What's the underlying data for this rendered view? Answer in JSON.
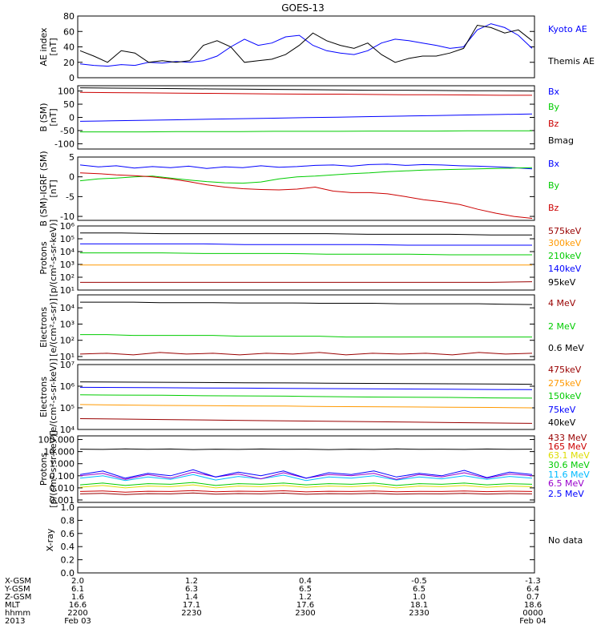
{
  "title": "GOES-13",
  "colors": {
    "black": "#000000",
    "blue": "#0000ff",
    "green": "#00cc00",
    "red": "#cc0000",
    "orange": "#ff9900",
    "yellow": "#dddd00",
    "cyan": "#00bbff",
    "purple": "#9900cc",
    "darkred": "#990000"
  },
  "chart_data": [
    {
      "id": "ae",
      "type": "line",
      "ylabel": "AE index\n[nT]",
      "ylim": [
        0,
        80
      ],
      "yticks": [
        "0",
        "20",
        "40",
        "60",
        "80"
      ],
      "series": [
        {
          "name": "Kyoto AE",
          "color": "blue",
          "values": [
            18,
            16,
            15,
            17,
            16,
            20,
            19,
            21,
            20,
            22,
            28,
            40,
            50,
            42,
            45,
            53,
            55,
            42,
            35,
            32,
            30,
            35,
            45,
            50,
            48,
            45,
            42,
            38,
            40,
            62,
            70,
            65,
            55,
            38
          ]
        },
        {
          "name": "Themis AE",
          "color": "black",
          "values": [
            35,
            28,
            20,
            35,
            32,
            20,
            22,
            20,
            22,
            42,
            48,
            40,
            20,
            22,
            24,
            30,
            42,
            58,
            48,
            42,
            38,
            45,
            30,
            20,
            25,
            28,
            28,
            32,
            38,
            68,
            65,
            58,
            62,
            48
          ]
        }
      ]
    },
    {
      "id": "bsm",
      "type": "line",
      "ylabel": "B (SM)\n[nT]",
      "ylim": [
        -120,
        120
      ],
      "yticks": [
        "-100",
        "-50",
        "0",
        "50",
        "100"
      ],
      "series": [
        {
          "name": "Bx",
          "color": "blue",
          "values": [
            -15,
            -13,
            -11,
            -9,
            -7,
            -5,
            -3,
            -1,
            1,
            3,
            5,
            7,
            9,
            11,
            13
          ]
        },
        {
          "name": "By",
          "color": "green",
          "values": [
            -55,
            -55,
            -55,
            -54,
            -54,
            -54,
            -53,
            -53,
            -53,
            -52,
            -52,
            -52,
            -51,
            -51,
            -51
          ]
        },
        {
          "name": "Bz",
          "color": "red",
          "values": [
            95,
            94,
            93,
            92,
            91,
            90,
            89,
            88,
            88,
            87,
            86,
            86,
            85,
            84,
            84
          ]
        },
        {
          "name": "Bmag",
          "color": "black",
          "values": [
            112,
            111,
            110,
            109,
            108,
            107,
            106,
            105,
            104,
            103,
            103,
            102,
            101,
            101,
            100
          ]
        }
      ]
    },
    {
      "id": "digrf",
      "type": "line",
      "ylabel": "B (SM)-IGRF (SM)\n[nT]",
      "ylim": [
        -11,
        5
      ],
      "yticks": [
        "-10",
        "-5",
        "0",
        "5"
      ],
      "series": [
        {
          "name": "Bx",
          "color": "blue",
          "values": [
            3,
            2.5,
            2.8,
            2.2,
            2.6,
            2.3,
            2.7,
            2.1,
            2.5,
            2.3,
            2.8,
            2.4,
            2.6,
            2.9,
            3.0,
            2.7,
            3.1,
            3.2,
            2.9,
            3.1,
            3.0,
            2.8,
            2.7,
            2.5,
            2.3,
            2.0
          ]
        },
        {
          "name": "By",
          "color": "green",
          "values": [
            -1,
            -0.5,
            -0.3,
            0,
            0.2,
            -0.3,
            -0.8,
            -1.2,
            -1.5,
            -1.6,
            -1.3,
            -0.5,
            0,
            0.2,
            0.5,
            0.8,
            1,
            1.3,
            1.5,
            1.7,
            1.8,
            1.9,
            2,
            2.1,
            2.2,
            2.3
          ]
        },
        {
          "name": "Bz",
          "color": "red",
          "values": [
            1,
            0.8,
            0.5,
            0.3,
            0,
            -0.5,
            -1.2,
            -2,
            -2.6,
            -3,
            -3.2,
            -3.3,
            -3.1,
            -2.6,
            -3.6,
            -4,
            -4,
            -4.3,
            -5,
            -5.8,
            -6.3,
            -7,
            -8.2,
            -9.2,
            -10,
            -10.5
          ]
        }
      ]
    },
    {
      "id": "protons",
      "type": "line",
      "log": true,
      "ylabel": "Protons\n[p/(cm²-s-sr-keV)]",
      "ylim_exp": [
        1,
        6
      ],
      "yticks": [
        "10¹",
        "10²",
        "10³",
        "10⁴",
        "10⁵",
        "10⁶"
      ],
      "series": [
        {
          "name": "575keV",
          "color": "darkred",
          "values": [
            1.6,
            1.6,
            1.6,
            1.6,
            1.6,
            1.6,
            1.6,
            1.6,
            1.6,
            1.6,
            1.6,
            1.65
          ]
        },
        {
          "name": "300keV",
          "color": "orange",
          "values": [
            2.95,
            2.95,
            2.95,
            2.95,
            2.95,
            2.95,
            2.95,
            2.95,
            2.95,
            2.95,
            2.95,
            2.95
          ]
        },
        {
          "name": "210keV",
          "color": "green",
          "values": [
            3.9,
            3.9,
            3.9,
            3.85,
            3.85,
            3.85,
            3.8,
            3.8,
            3.8,
            3.75,
            3.75,
            3.75
          ]
        },
        {
          "name": "140keV",
          "color": "blue",
          "values": [
            4.6,
            4.6,
            4.6,
            4.6,
            4.55,
            4.55,
            4.55,
            4.55,
            4.5,
            4.5,
            4.5,
            4.5
          ]
        },
        {
          "name": "95keV",
          "color": "black",
          "values": [
            5.45,
            5.45,
            5.4,
            5.4,
            5.4,
            5.4,
            5.4,
            5.35,
            5.35,
            5.35,
            5.3,
            5.3
          ]
        }
      ]
    },
    {
      "id": "electrons1",
      "type": "line",
      "log": true,
      "ylabel": "Electrons\n[e/(cm²-s-sr)]",
      "ylim_exp": [
        0.8,
        4.8
      ],
      "yticks": [
        "10¹",
        "10²",
        "10³",
        "10⁴"
      ],
      "series": [
        {
          "name": "4 MeV",
          "color": "darkred",
          "values": [
            1.15,
            1.2,
            1.1,
            1.25,
            1.15,
            1.2,
            1.1,
            1.2,
            1.15,
            1.25,
            1.1,
            1.2,
            1.15,
            1.2,
            1.1,
            1.25,
            1.15,
            1.2
          ]
        },
        {
          "name": "2 MeV",
          "color": "green",
          "values": [
            2.35,
            2.35,
            2.3,
            2.3,
            2.3,
            2.3,
            2.25,
            2.25,
            2.25,
            2.25,
            2.2,
            2.2,
            2.2,
            2.2,
            2.2,
            2.2,
            2.2,
            2.2
          ]
        },
        {
          "name": "0.6 MeV",
          "color": "black",
          "values": [
            4.35,
            4.35,
            4.35,
            4.32,
            4.32,
            4.32,
            4.3,
            4.3,
            4.3,
            4.28,
            4.28,
            4.28,
            4.25,
            4.25,
            4.25,
            4.25,
            4.22,
            4.2
          ]
        }
      ]
    },
    {
      "id": "electrons2",
      "type": "line",
      "log": true,
      "ylabel": "Electrons\n[e/(cm²-s-sr-keV)]",
      "ylim_exp": [
        4,
        7
      ],
      "yticks": [
        "10⁴",
        "10⁵",
        "10⁶",
        "10⁷"
      ],
      "series": [
        {
          "name": "475keV",
          "color": "darkred",
          "values": [
            4.5,
            4.48,
            4.46,
            4.44,
            4.42,
            4.4,
            4.38,
            4.36,
            4.34,
            4.32,
            4.3,
            4.28
          ]
        },
        {
          "name": "275keV",
          "color": "orange",
          "values": [
            5.15,
            5.13,
            5.11,
            5.1,
            5.09,
            5.08,
            5.06,
            5.05,
            5.04,
            5.03,
            5.02,
            5.0
          ]
        },
        {
          "name": "150keV",
          "color": "green",
          "values": [
            5.6,
            5.59,
            5.58,
            5.56,
            5.55,
            5.54,
            5.52,
            5.5,
            5.49,
            5.48,
            5.46,
            5.45
          ]
        },
        {
          "name": "75keV",
          "color": "blue",
          "values": [
            5.95,
            5.94,
            5.93,
            5.92,
            5.91,
            5.9,
            5.89,
            5.88,
            5.87,
            5.86,
            5.85,
            5.84
          ]
        },
        {
          "name": "40keV",
          "color": "black",
          "values": [
            6.2,
            6.19,
            6.18,
            6.17,
            6.16,
            6.15,
            6.14,
            6.13,
            6.12,
            6.11,
            6.1,
            6.09
          ]
        }
      ]
    },
    {
      "id": "protons2",
      "type": "line",
      "log": true,
      "ylabel": "Protons\n[p/(cm²-s-sr-keV)]",
      "ylim_exp": [
        -3.2,
        2.3
      ],
      "yticks": [
        "0.001",
        "0.010",
        "0.100",
        "1.000",
        "10.000",
        "100.000"
      ],
      "series": [
        {
          "name": "433 MeV",
          "color": "darkred",
          "values": [
            -2.5,
            -2.45,
            -2.55,
            -2.48,
            -2.5,
            -2.42,
            -2.52,
            -2.47,
            -2.5,
            -2.44,
            -2.53,
            -2.48,
            -2.5,
            -2.46,
            -2.52,
            -2.49,
            -2.5,
            -2.45,
            -2.51,
            -2.47,
            -2.5
          ]
        },
        {
          "name": "165 MeV",
          "color": "red",
          "values": [
            -2.3,
            -2.25,
            -2.35,
            -2.28,
            -2.3,
            -2.22,
            -2.32,
            -2.27,
            -2.3,
            -2.24,
            -2.33,
            -2.28,
            -2.3,
            -2.26,
            -2.32,
            -2.29,
            -2.3,
            -2.25,
            -2.31,
            -2.27,
            -2.3
          ]
        },
        {
          "name": "63.1 MeV",
          "color": "yellow",
          "values": [
            -1.95,
            -1.8,
            -2.0,
            -1.85,
            -1.9,
            -1.75,
            -2.0,
            -1.85,
            -1.9,
            -1.8,
            -1.95,
            -1.85,
            -1.9,
            -1.8,
            -2.0,
            -1.85,
            -1.9,
            -1.8,
            -1.95,
            -1.85,
            -1.9
          ]
        },
        {
          "name": "30.6 MeV",
          "color": "green",
          "values": [
            -1.75,
            -1.6,
            -1.8,
            -1.65,
            -1.7,
            -1.55,
            -1.8,
            -1.65,
            -1.7,
            -1.6,
            -1.75,
            -1.65,
            -1.7,
            -1.6,
            -1.8,
            -1.65,
            -1.7,
            -1.6,
            -1.75,
            -1.65,
            -1.7
          ]
        },
        {
          "name": "11.6 MeV",
          "color": "cyan",
          "values": [
            -1.2,
            -1.0,
            -1.4,
            -1.1,
            -1.3,
            -0.9,
            -1.35,
            -1.05,
            -1.25,
            -0.95,
            -1.4,
            -1.1,
            -1.2,
            -1.0,
            -1.35,
            -1.1,
            -1.25,
            -1.0,
            -1.3,
            -1.05,
            -1.2
          ]
        },
        {
          "name": "6.5 MeV",
          "color": "purple",
          "values": [
            -1.0,
            -0.8,
            -1.3,
            -0.9,
            -1.2,
            -0.7,
            -1.1,
            -0.85,
            -1.25,
            -0.75,
            -1.2,
            -0.9,
            -1.0,
            -0.8,
            -1.3,
            -0.9,
            -1.1,
            -0.75,
            -1.2,
            -0.85,
            -1.0
          ]
        },
        {
          "name": "2.5 MeV",
          "color": "blue",
          "values": [
            -0.9,
            -0.6,
            -1.2,
            -0.8,
            -1.0,
            -0.5,
            -1.1,
            -0.7,
            -1.0,
            -0.6,
            -1.2,
            -0.75,
            -0.9,
            -0.6,
            -1.1,
            -0.8,
            -1.0,
            -0.55,
            -1.15,
            -0.7,
            -0.9
          ]
        },
        {
          "name": "",
          "color": "black",
          "values": [
            1.2,
            1.18,
            1.22,
            1.19,
            1.21,
            1.17,
            1.2,
            1.18,
            1.21,
            1.19,
            1.2,
            1.17,
            1.2,
            1.18,
            1.22,
            1.19,
            1.2,
            1.18,
            1.21,
            1.19,
            1.2
          ]
        }
      ]
    },
    {
      "id": "xray",
      "type": "line",
      "ylabel": "X-ray",
      "ylim": [
        0,
        1
      ],
      "yticks": [
        "0.0",
        "0.2",
        "0.4",
        "0.6",
        "0.8",
        "1.0"
      ],
      "nodata": "No data",
      "series": []
    }
  ],
  "footer": {
    "rows": [
      {
        "label": "X-GSM",
        "values": [
          "2.0",
          "1.2",
          "0.4",
          "-0.5",
          "-1.3"
        ]
      },
      {
        "label": "Y-GSM",
        "values": [
          "6.1",
          "6.3",
          "6.5",
          "6.5",
          "6.4"
        ]
      },
      {
        "label": "Z-GSM",
        "values": [
          "1.6",
          "1.4",
          "1.2",
          "1.0",
          "0.7"
        ]
      },
      {
        "label": "MLT",
        "values": [
          "16.6",
          "17.1",
          "17.6",
          "18.1",
          "18.6"
        ]
      },
      {
        "label": "hhmm",
        "values": [
          "2200",
          "2230",
          "2300",
          "2330",
          "0000"
        ]
      }
    ],
    "year": "2013",
    "date_start": "Feb 03",
    "date_end": "Feb 04"
  }
}
